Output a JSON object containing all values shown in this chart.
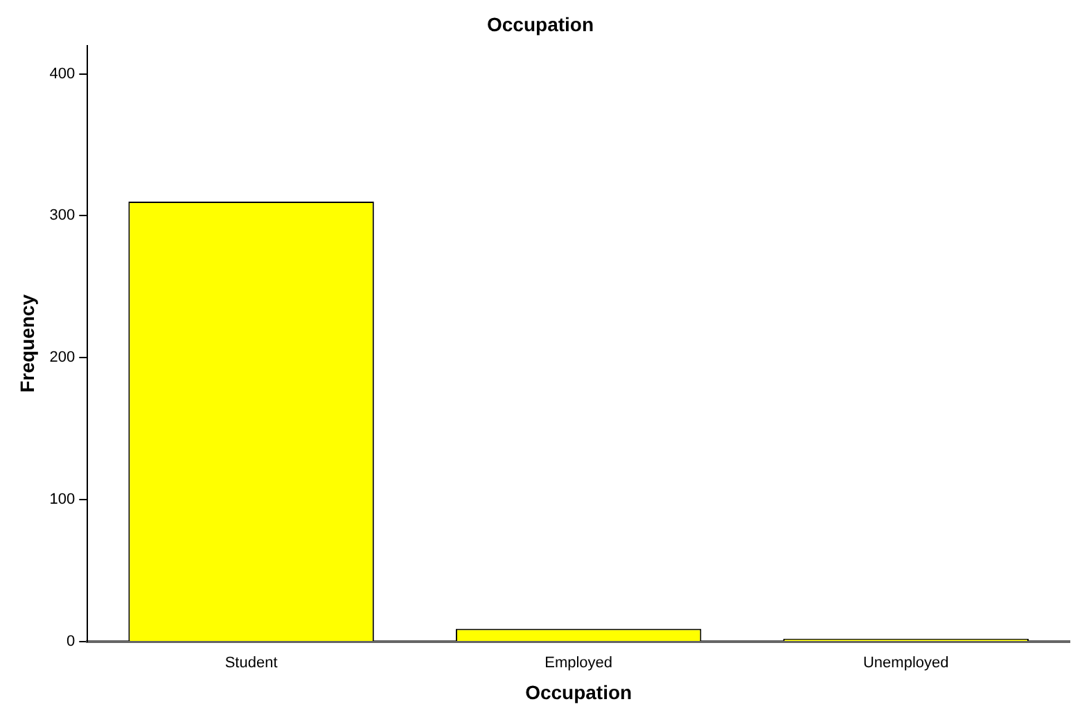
{
  "chart_data": {
    "type": "bar",
    "title": "Occupation",
    "xlabel": "Occupation",
    "ylabel": "Frequency",
    "categories": [
      "Student",
      "Employed",
      "Unemployed"
    ],
    "series": [
      {
        "color": "#ffff00",
        "values": [
          310,
          9,
          2
        ]
      }
    ],
    "ylim": [
      0,
      420
    ],
    "yticks": [
      0,
      100,
      200,
      300,
      400
    ],
    "grid": false,
    "legend": false
  }
}
